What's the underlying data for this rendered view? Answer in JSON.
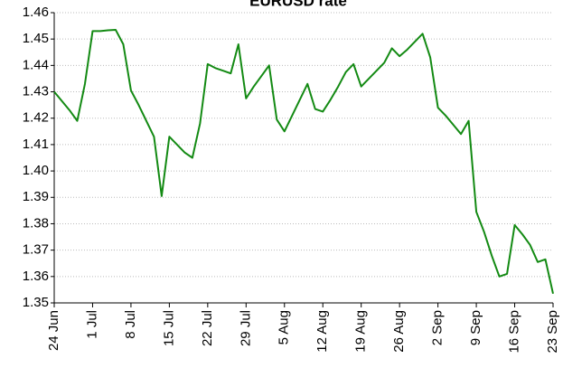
{
  "chart_data": {
    "type": "line",
    "title": "EURUSD rate",
    "categories": [
      "24 Jun",
      null,
      null,
      null,
      null,
      "1 Jul",
      null,
      null,
      null,
      null,
      "8 Jul",
      null,
      null,
      null,
      null,
      "15 Jul",
      null,
      null,
      null,
      null,
      "22 Jul",
      null,
      null,
      null,
      null,
      "29 Jul",
      null,
      null,
      null,
      null,
      "5 Aug",
      null,
      null,
      null,
      null,
      "12 Aug",
      null,
      null,
      null,
      null,
      "19 Aug",
      null,
      null,
      null,
      null,
      "26 Aug",
      null,
      null,
      null,
      null,
      "2 Sep",
      null,
      null,
      null,
      null,
      "9 Sep",
      null,
      null,
      null,
      null,
      "16 Sep",
      null,
      null,
      null,
      null,
      "23 Sep"
    ],
    "series": [
      {
        "name": "EURUSD",
        "color": "#138a13",
        "values": [
          1.43,
          1.4265,
          1.423,
          1.419,
          1.433,
          1.453,
          1.453,
          1.4533,
          1.4535,
          1.448,
          1.4305,
          1.425,
          1.419,
          1.413,
          1.3905,
          1.413,
          1.41,
          1.407,
          1.405,
          1.418,
          1.4405,
          1.439,
          1.438,
          1.437,
          1.448,
          1.4275,
          1.432,
          1.436,
          1.44,
          1.4195,
          1.415,
          1.421,
          1.427,
          1.433,
          1.4235,
          1.4225,
          1.427,
          1.432,
          1.4375,
          1.4405,
          1.432,
          1.435,
          1.438,
          1.441,
          1.4465,
          1.4435,
          1.446,
          1.449,
          1.452,
          1.443,
          1.424,
          1.421,
          1.4175,
          1.414,
          1.419,
          1.3845,
          1.377,
          1.368,
          1.36,
          1.361,
          1.3795,
          1.376,
          1.372,
          1.3655,
          1.3665,
          1.3535
        ]
      }
    ],
    "ylim": [
      1.35,
      1.46
    ],
    "yticks": [
      1.35,
      1.36,
      1.37,
      1.38,
      1.39,
      {
        "value": 1.4,
        "label": "1.40"
      },
      1.41,
      1.42,
      1.43,
      1.44,
      1.45,
      1.46
    ],
    "grid": true
  }
}
